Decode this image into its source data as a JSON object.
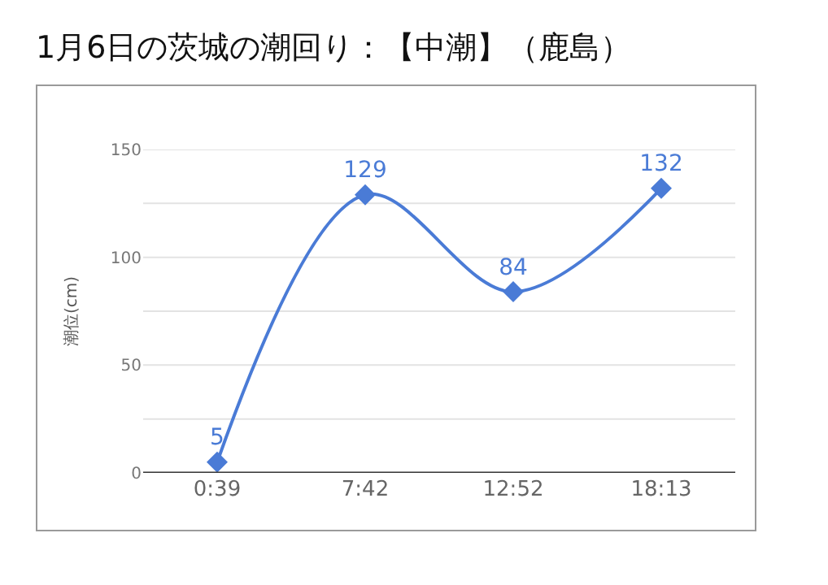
{
  "chart_data": {
    "type": "line",
    "title": "1月6日の茨城の潮回り：【中潮】（鹿島）",
    "ylabel": "潮位(cm)",
    "categories": [
      "0:39",
      "7:42",
      "12:52",
      "18:13"
    ],
    "series": [
      {
        "color": "#4a7bd6",
        "values": [
          5,
          129,
          84,
          132
        ]
      }
    ],
    "ylim": [
      0,
      150
    ],
    "yticks": [
      0,
      {
        "value": 25,
        "label": null
      },
      50,
      {
        "value": 75,
        "label": null
      },
      100,
      {
        "value": 125,
        "label": null
      },
      150
    ],
    "grid": "y",
    "marker": "diamond",
    "line_style": "solid",
    "data_labels": true
  }
}
